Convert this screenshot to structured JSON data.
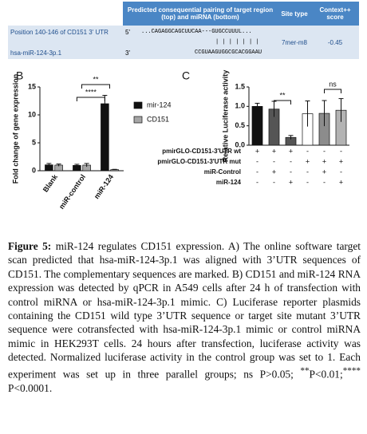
{
  "table": {
    "header": [
      "Predicted consequential pairing of target region (top) and miRNA (bottom)",
      "Site type",
      "Context++ score"
    ],
    "target": "Position 140-146 of CD151 3' UTR",
    "target_end": "5'",
    "target_seq": "...CAGAGGCAGCUUCAA---GUGCCUUUL...",
    "pairing": "| | | | | | |",
    "mirna": "hsa-miR-124-3p.1",
    "mirna_end": "3'",
    "mirna_seq": "CCGUAAGUGGCGCACGGAAU",
    "site_type": "7mer-m8",
    "score": "-0.45"
  },
  "chart_data": [
    {
      "type": "bar",
      "panel": "B",
      "ylabel": "Fold change of gene expression",
      "categories": [
        "Blank",
        "miR-control",
        "miR-124"
      ],
      "series": [
        {
          "name": "mir-124",
          "color": "#111111",
          "values": [
            1.05,
            0.95,
            12.0
          ],
          "errors": [
            0.25,
            0.2,
            1.5
          ]
        },
        {
          "name": "CD151",
          "color": "#a6a6a6",
          "values": [
            1.0,
            1.0,
            0.2
          ],
          "errors": [
            0.2,
            0.3,
            0.05
          ]
        }
      ],
      "ylim": [
        0,
        15
      ],
      "yticks": [
        0,
        5,
        10,
        15
      ],
      "annotations": [
        "**",
        "****"
      ]
    },
    {
      "type": "bar",
      "panel": "C",
      "ylabel": "Relative Luciferase activity",
      "series": [
        {
          "colors": [
            "#111111",
            "#555555",
            "#555555",
            "#ffffff",
            "#8c8c8c",
            "#b3b3b3"
          ],
          "values": [
            1.0,
            0.93,
            0.2,
            0.81,
            0.82,
            0.9
          ],
          "errors": [
            0.08,
            0.2,
            0.05,
            0.33,
            0.33,
            0.3
          ]
        }
      ],
      "ylim": [
        0,
        1.5
      ],
      "yticks": [
        {
          "value": 0,
          "label": "0.0"
        },
        {
          "value": 0.5,
          "label": "0.5"
        },
        {
          "value": 1,
          "label": "1.0"
        },
        {
          "value": 1.5,
          "label": "1.5"
        }
      ],
      "conditions": [
        {
          "label": "pmirGLO-CD151-3'UTR wt",
          "signs": [
            "+",
            "+",
            "+",
            "-",
            "-",
            "-"
          ]
        },
        {
          "label": "pmirGLO-CD151-3'UTR mut",
          "signs": [
            "-",
            "-",
            "-",
            "+",
            "+",
            "+"
          ]
        },
        {
          "label": "miR-Control",
          "signs": [
            "-",
            "+",
            "-",
            "-",
            "+",
            "-"
          ]
        },
        {
          "label": "miR-124",
          "signs": [
            "-",
            "-",
            "+",
            "-",
            "-",
            "+"
          ]
        }
      ],
      "annotations": [
        "**",
        "ns"
      ]
    }
  ],
  "caption": {
    "label": "Figure 5:",
    "text": "miR-124 regulates CD151 expression. A) The online software target scan predicted that hsa-miR-124-3p.1 was aligned with 3’UTR sequences of CD151. The complementary sequences are marked. B) CD151 and miR-124 RNA expression was detected by qPCR in A549 cells after 24 h of transfection with control miRNA or hsa-miR-124-3p.1 mimic. C) Luciferase reporter plasmids containing the CD151 wild type 3’UTR sequence or target site mutant 3’UTR sequence were cotransfected with hsa-miR-124-3p.1 mimic or control miRNA mimic in HEK293T cells. 24 hours after transfection, luciferase activity was detected. Normalized luciferase activity in the control group was set to 1. Each experiment was set up in three parallel groups; ns P>0.05;",
    "sup1": "**",
    "text2": "P<0.01;",
    "sup2": "****",
    "text3": "P<0.0001."
  }
}
